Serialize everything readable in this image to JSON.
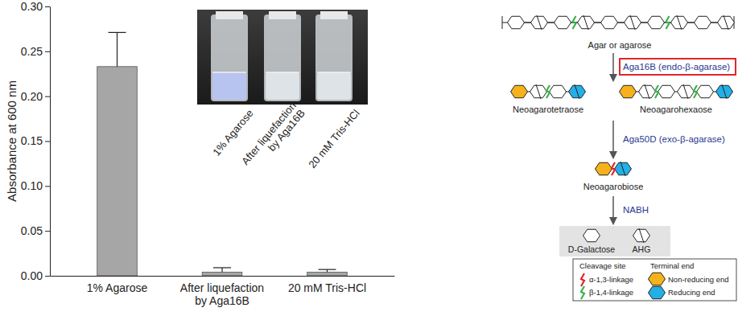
{
  "chart_data": {
    "type": "bar",
    "y_label": "Absorbance at 600 nm",
    "categories": [
      "1% Agarose",
      "After liquefaction by Aga16B",
      "20 mM Tris-HCl"
    ],
    "values": [
      0.233,
      0.004,
      0.004
    ],
    "errors": [
      0.038,
      0.005,
      0.003
    ],
    "color": "#a6a6a6",
    "ylim": [
      0,
      0.3
    ],
    "yticks": [
      {
        "value": 0,
        "label": "0.00"
      },
      {
        "value": 0.05,
        "label": "0.05"
      },
      {
        "value": 0.1,
        "label": "0.10"
      },
      {
        "value": 0.15,
        "label": "0.15"
      },
      {
        "value": 0.2,
        "label": "0.20"
      },
      {
        "value": 0.25,
        "label": "0.25"
      },
      {
        "value": 0.3,
        "label": "0.30"
      }
    ],
    "grid": false
  },
  "diagram": {
    "nodes": [
      {
        "label": "Agar or agarose"
      },
      {
        "label": "Neoagarotetraose"
      },
      {
        "label": "Neoagarohexaose"
      },
      {
        "label": "Neoagarobiose"
      },
      {
        "label": "D-Galactose"
      },
      {
        "label": "AHG"
      }
    ],
    "enzymes": [
      "Aga16B (endo-β-agarase)",
      "Aga50D (exo-β-agarase)",
      "NABH"
    ],
    "legend": {
      "headers": [
        "Cleavage site",
        "Terminal end"
      ],
      "items": [
        "α-1,3-linkage",
        "β-1,4-linkage",
        "Non-reducing end",
        "Reducing end"
      ]
    }
  }
}
